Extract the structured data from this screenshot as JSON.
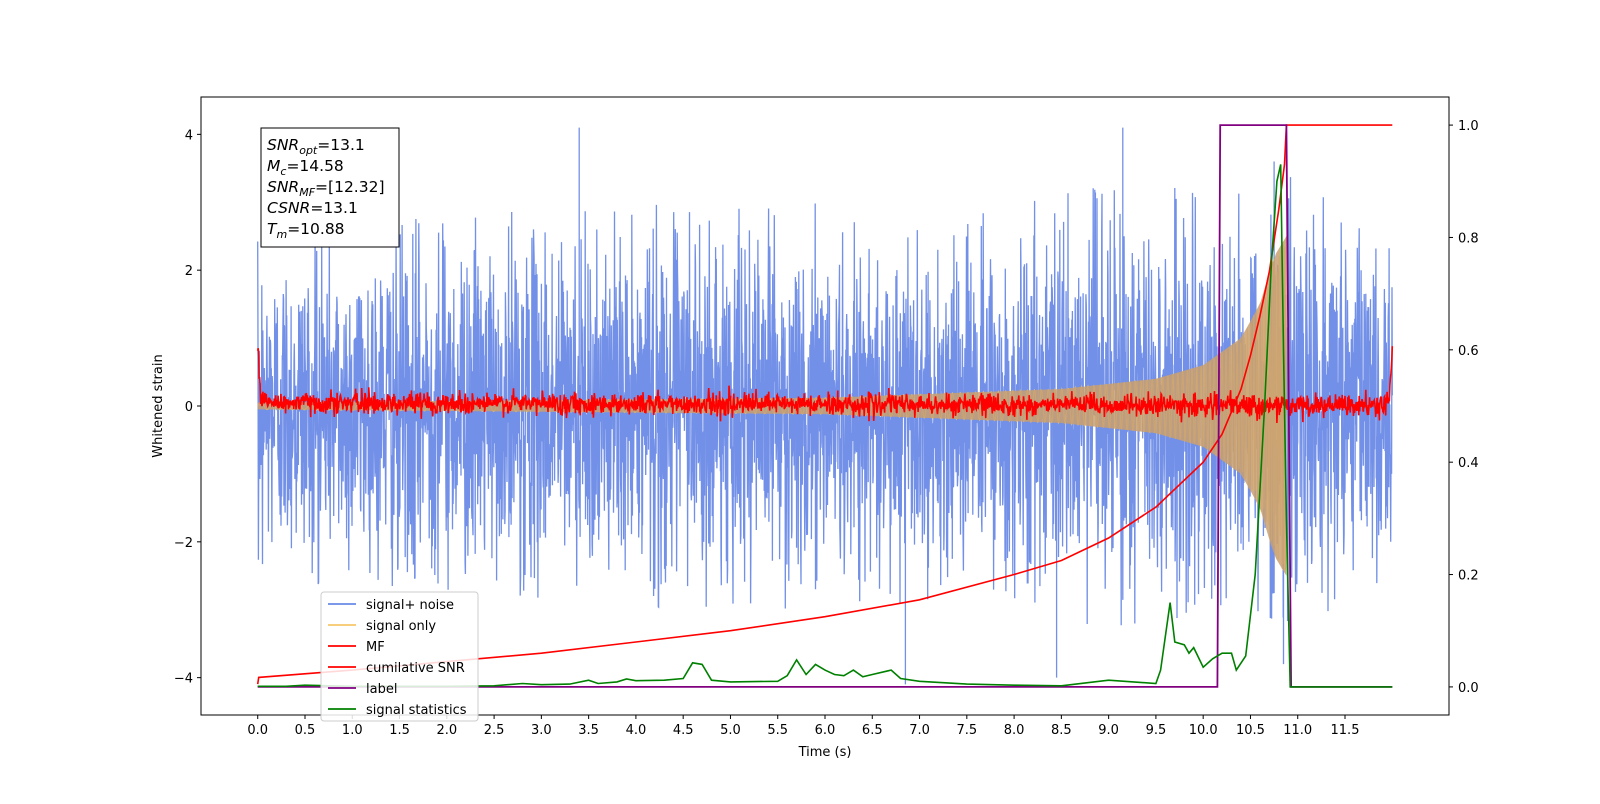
{
  "chart_data": {
    "type": "line",
    "xlabel": "Time (s)",
    "ylabel": "Whitened strain",
    "xlim": [
      -0.6,
      12.6
    ],
    "ylim": [
      -4.55,
      4.55
    ],
    "y2lim": [
      -0.05,
      1.05
    ],
    "xticks": [
      0.0,
      0.5,
      1.0,
      1.5,
      2.0,
      2.5,
      3.0,
      3.5,
      4.0,
      4.5,
      5.0,
      5.5,
      6.0,
      6.5,
      7.0,
      7.5,
      8.0,
      8.5,
      9.0,
      9.5,
      10.0,
      10.5,
      11.0,
      11.5
    ],
    "xtick_labels": [
      "0.0",
      "0.5",
      "1.0",
      "1.5",
      "2.0",
      "2.5",
      "3.0",
      "3.5",
      "4.0",
      "4.5",
      "5.0",
      "5.5",
      "6.0",
      "6.5",
      "7.0",
      "7.5",
      "8.0",
      "8.5",
      "9.0",
      "9.5",
      "10.0",
      "10.5",
      "11.0",
      "11.5"
    ],
    "yticks": [
      -4,
      -2,
      0,
      2,
      4
    ],
    "ytick_labels": [
      "−4",
      "−2",
      "0",
      "2",
      "4"
    ],
    "y2ticks": [
      0.0,
      0.2,
      0.4,
      0.6,
      0.8,
      1.0
    ],
    "y2tick_labels": [
      "0.0",
      "0.2",
      "0.4",
      "0.6",
      "0.8",
      "1.0"
    ],
    "grid": false,
    "legend_position": "lower-left",
    "legend": [
      {
        "label": "signal+ noise",
        "color": "#6a8ae6"
      },
      {
        "label": "signal only",
        "color": "#f5c76a"
      },
      {
        "label": "MF",
        "color": "#ff0000"
      },
      {
        "label": "cumilative SNR",
        "color": "#ff0000"
      },
      {
        "label": "label",
        "color": "#800080"
      },
      {
        "label": "signal statistics",
        "color": "#008000"
      }
    ],
    "info_box": [
      {
        "base": "SNR",
        "sub": "opt",
        "value": "=13.1"
      },
      {
        "base": "M",
        "sub": "c",
        "value": "=14.58"
      },
      {
        "base": "SNR",
        "sub": "MF",
        "value": "=[12.32]"
      },
      {
        "base": "CSNR",
        "sub": "",
        "value": "=13.1"
      },
      {
        "base": "T",
        "sub": "m",
        "value": "=10.88"
      }
    ],
    "series": [
      {
        "name": "signal+ noise",
        "axis": "left",
        "color": "#6a8ae6",
        "t_start": 0.0,
        "t_end": 12.0,
        "noise_sigma": 1.0,
        "envelope": [
          [
            0.0,
            2.6
          ],
          [
            2.0,
            2.8
          ],
          [
            4.0,
            3.0
          ],
          [
            6.0,
            3.0
          ],
          [
            8.0,
            3.0
          ],
          [
            9.0,
            3.3
          ],
          [
            10.0,
            3.2
          ],
          [
            10.5,
            3.4
          ],
          [
            10.8,
            3.6
          ],
          [
            11.0,
            3.3
          ],
          [
            12.0,
            2.5
          ]
        ],
        "spikes": [
          [
            3.4,
            4.1
          ],
          [
            6.85,
            -4.1
          ],
          [
            8.45,
            -4.0
          ],
          [
            9.15,
            4.1
          ],
          [
            10.75,
            3.6
          ],
          [
            10.85,
            -3.8
          ]
        ]
      },
      {
        "name": "signal only",
        "axis": "left",
        "color": "#f5c76a",
        "t_start": 0.0,
        "t_end": 10.88,
        "envelope": [
          [
            0.0,
            0.05
          ],
          [
            6.0,
            0.12
          ],
          [
            8.5,
            0.25
          ],
          [
            9.5,
            0.4
          ],
          [
            10.0,
            0.6
          ],
          [
            10.4,
            1.0
          ],
          [
            10.6,
            1.5
          ],
          [
            10.75,
            2.2
          ],
          [
            10.88,
            2.5
          ]
        ]
      },
      {
        "name": "MF",
        "axis": "left",
        "color": "#ff0000",
        "t_start": 0.0,
        "t_end": 12.0,
        "points": [
          [
            0.0,
            1.0
          ],
          [
            0.03,
            0.1
          ],
          [
            0.1,
            0.05
          ],
          [
            11.9,
            0.0
          ],
          [
            11.97,
            0.1
          ],
          [
            12.0,
            0.9
          ]
        ],
        "noise_sigma": 0.08
      },
      {
        "name": "cumilative SNR",
        "axis": "right",
        "color": "#ff0000",
        "points": [
          [
            0.0,
            0.005
          ],
          [
            0.01,
            0.017
          ],
          [
            1.0,
            0.03
          ],
          [
            2.0,
            0.045
          ],
          [
            3.0,
            0.06
          ],
          [
            4.0,
            0.08
          ],
          [
            5.0,
            0.1
          ],
          [
            6.0,
            0.125
          ],
          [
            7.0,
            0.155
          ],
          [
            8.0,
            0.2
          ],
          [
            8.5,
            0.225
          ],
          [
            9.0,
            0.265
          ],
          [
            9.5,
            0.32
          ],
          [
            10.0,
            0.4
          ],
          [
            10.2,
            0.45
          ],
          [
            10.4,
            0.53
          ],
          [
            10.5,
            0.59
          ],
          [
            10.6,
            0.66
          ],
          [
            10.7,
            0.74
          ],
          [
            10.8,
            0.85
          ],
          [
            10.86,
            0.93
          ],
          [
            10.88,
            1.0
          ],
          [
            12.0,
            1.0
          ]
        ]
      },
      {
        "name": "label",
        "axis": "right",
        "color": "#800080",
        "points": [
          [
            0.0,
            0.0
          ],
          [
            10.15,
            0.0
          ],
          [
            10.18,
            1.0
          ],
          [
            10.88,
            1.0
          ],
          [
            10.93,
            0.0
          ],
          [
            12.0,
            0.0
          ]
        ]
      },
      {
        "name": "signal statistics",
        "axis": "right",
        "color": "#008000",
        "points": [
          [
            0.0,
            0.001
          ],
          [
            0.3,
            0.001
          ],
          [
            0.5,
            0.003
          ],
          [
            1.0,
            0.001
          ],
          [
            2.0,
            0.001
          ],
          [
            2.5,
            0.002
          ],
          [
            2.8,
            0.006
          ],
          [
            3.0,
            0.004
          ],
          [
            3.3,
            0.005
          ],
          [
            3.5,
            0.012
          ],
          [
            3.6,
            0.006
          ],
          [
            3.8,
            0.009
          ],
          [
            3.9,
            0.014
          ],
          [
            4.0,
            0.011
          ],
          [
            4.3,
            0.012
          ],
          [
            4.5,
            0.015
          ],
          [
            4.6,
            0.043
          ],
          [
            4.7,
            0.04
          ],
          [
            4.8,
            0.012
          ],
          [
            5.0,
            0.009
          ],
          [
            5.5,
            0.01
          ],
          [
            5.6,
            0.02
          ],
          [
            5.7,
            0.048
          ],
          [
            5.8,
            0.022
          ],
          [
            5.9,
            0.04
          ],
          [
            6.0,
            0.03
          ],
          [
            6.1,
            0.022
          ],
          [
            6.2,
            0.02
          ],
          [
            6.3,
            0.03
          ],
          [
            6.4,
            0.018
          ],
          [
            6.5,
            0.022
          ],
          [
            6.7,
            0.03
          ],
          [
            6.8,
            0.015
          ],
          [
            7.0,
            0.01
          ],
          [
            7.5,
            0.005
          ],
          [
            8.0,
            0.003
          ],
          [
            8.5,
            0.002
          ],
          [
            9.0,
            0.012
          ],
          [
            9.5,
            0.006
          ],
          [
            9.55,
            0.03
          ],
          [
            9.65,
            0.15
          ],
          [
            9.7,
            0.08
          ],
          [
            9.8,
            0.075
          ],
          [
            9.85,
            0.06
          ],
          [
            9.9,
            0.07
          ],
          [
            10.0,
            0.035
          ],
          [
            10.1,
            0.05
          ],
          [
            10.2,
            0.06
          ],
          [
            10.3,
            0.06
          ],
          [
            10.35,
            0.03
          ],
          [
            10.45,
            0.055
          ],
          [
            10.55,
            0.2
          ],
          [
            10.65,
            0.5
          ],
          [
            10.72,
            0.75
          ],
          [
            10.78,
            0.9
          ],
          [
            10.82,
            0.93
          ],
          [
            10.85,
            0.6
          ],
          [
            10.88,
            0.3
          ],
          [
            10.92,
            0.0
          ],
          [
            12.0,
            0.0
          ]
        ]
      }
    ]
  }
}
